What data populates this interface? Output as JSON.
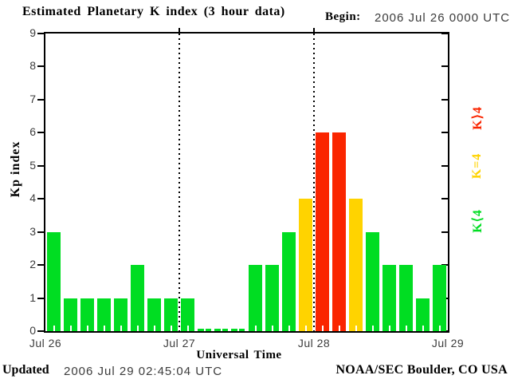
{
  "header": {
    "title": "Estimated Planetary K index (3 hour data)",
    "begin_label": "Begin:",
    "begin_value": "2006 Jul 26 0000 UTC"
  },
  "footer": {
    "updated_label": "Updated",
    "updated_value": "2006 Jul 29 02:45:04 UTC",
    "credit": "NOAA/SEC Boulder, CO USA"
  },
  "legend": {
    "items": [
      {
        "label": "K⟩4",
        "color": "#fa2500"
      },
      {
        "label": "K=4",
        "color": "#ffd300"
      },
      {
        "label": "K⟨4",
        "color": "#00dd22"
      }
    ]
  },
  "chart_data": {
    "type": "bar",
    "title": "Estimated Planetary K index (3 hour data)",
    "xlabel": "Universal Time",
    "ylabel": "Kp index",
    "ylim": [
      0,
      9
    ],
    "yticks": [
      0,
      1,
      2,
      3,
      4,
      5,
      6,
      7,
      8,
      9
    ],
    "x_day_labels": [
      "Jul 26",
      "Jul 27",
      "Jul 28",
      "Jul 29"
    ],
    "bars_per_day": 8,
    "bin_hours": 3,
    "values": [
      3,
      1,
      1,
      1,
      1,
      2,
      1,
      1,
      1,
      0,
      0,
      0,
      2,
      2,
      3,
      4,
      6,
      6,
      4,
      3,
      2,
      2,
      1,
      2
    ],
    "series_by_day": [
      {
        "day": "Jul 26",
        "values": [
          3,
          1,
          1,
          1,
          1,
          2,
          1,
          1
        ]
      },
      {
        "day": "Jul 27",
        "values": [
          1,
          0,
          0,
          0,
          2,
          2,
          3,
          4
        ]
      },
      {
        "day": "Jul 28",
        "values": [
          6,
          6,
          4,
          3,
          2,
          2,
          1,
          2
        ]
      }
    ],
    "colors": {
      "k_lt_4": "#00dd22",
      "k_eq_4": "#ffd300",
      "k_gt_4": "#fa2500"
    },
    "grid": {
      "vertical_dotted_day_boundaries": [
        1,
        2
      ],
      "horizontal": false
    },
    "legend_position": "right"
  }
}
